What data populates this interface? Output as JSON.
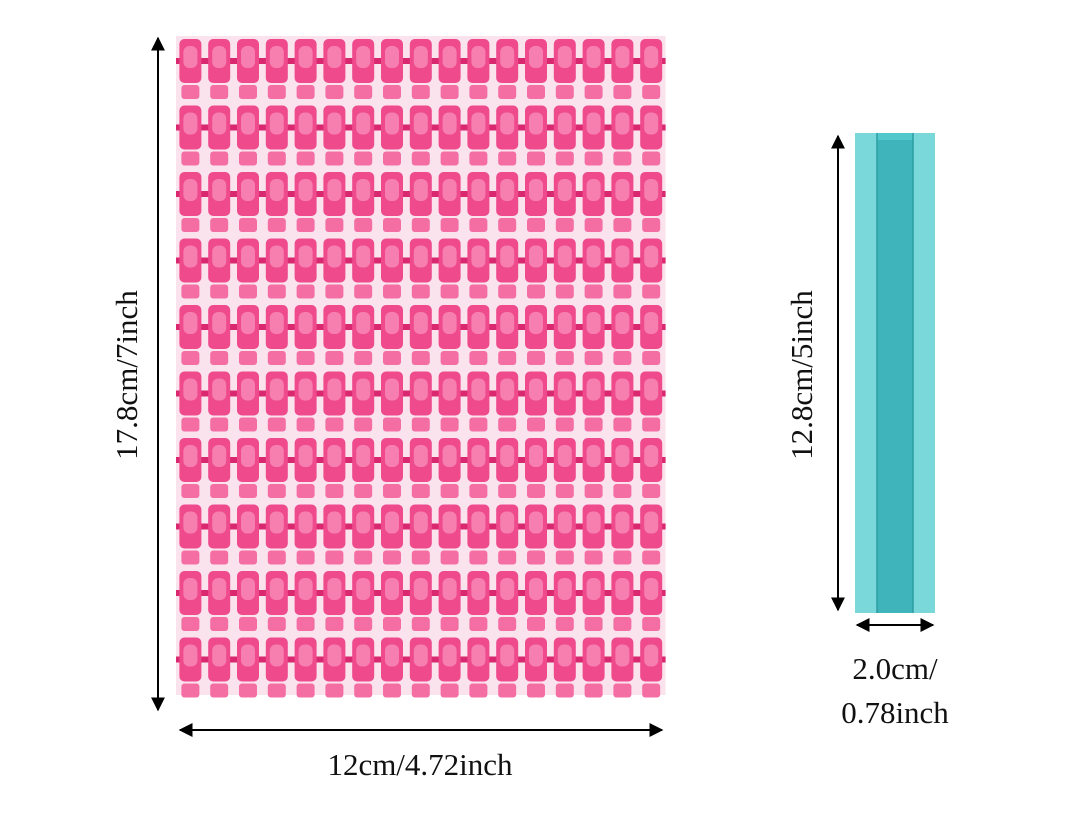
{
  "labels": {
    "height_left": "17.8cm/7inch",
    "width_left": "12cm/4.72inch",
    "height_right": "12.8cm/5inch",
    "width_right_line1": "2.0cm/",
    "width_right_line2": "0.78inch"
  }
}
